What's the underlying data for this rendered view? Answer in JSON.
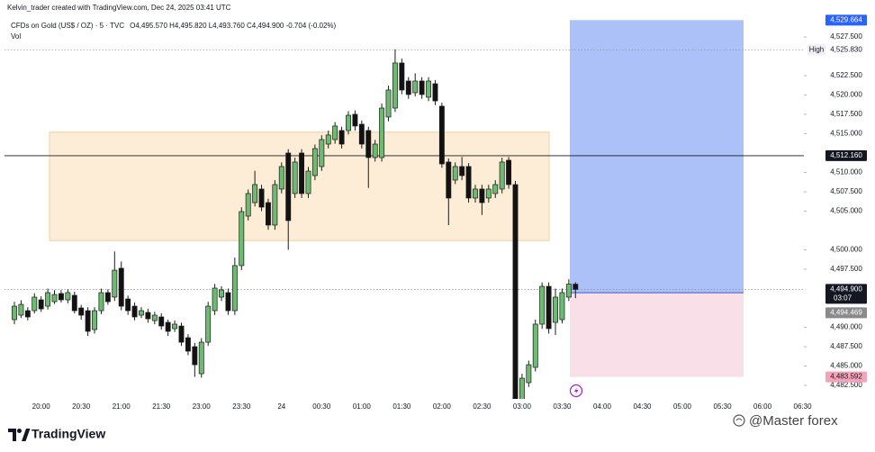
{
  "chart_data": {
    "type": "candlestick",
    "header": "Kelvin_trader created with TradingView.com, Dec 24, 2025 03:41 UTC",
    "symbol": "CFDs on Gold (US$ / OZ) · 5 · TVC",
    "ohlc_text": "O4,495.570 H4,495.820 L4,493.760 C4,494.900 -0.704 (-0.02%)",
    "volume_label": "Vol",
    "brand": "TradingView",
    "watermark": "@Master forex",
    "up_color": "#6dbb71",
    "down_color": "#121212",
    "grid": false,
    "categories": [
      null,
      null,
      null,
      null,
      "20:00",
      null,
      null,
      null,
      null,
      null,
      "20:30",
      null,
      null,
      null,
      null,
      null,
      "21:00",
      null,
      null,
      null,
      null,
      null,
      "21:30",
      null,
      null,
      null,
      null,
      null,
      "23:00",
      null,
      null,
      null,
      null,
      null,
      "23:30",
      null,
      null,
      null,
      null,
      null,
      "24",
      null,
      null,
      null,
      null,
      null,
      "00:30",
      null,
      null,
      null,
      null,
      null,
      "01:00",
      null,
      null,
      null,
      null,
      null,
      "01:30",
      null,
      null,
      null,
      null,
      null,
      "02:00",
      null,
      null,
      null,
      null,
      null,
      "02:30",
      null,
      null,
      null,
      null,
      null,
      "03:00",
      null,
      null,
      null,
      null,
      null,
      "03:30",
      null,
      null,
      null,
      null,
      null,
      "04:00",
      null,
      null,
      null,
      null,
      null,
      "04:30",
      null,
      null,
      null,
      null,
      null,
      "05:00",
      null,
      null,
      null,
      null,
      null,
      "05:30",
      null,
      null,
      null,
      null,
      null,
      "06:00",
      null,
      null,
      null,
      null,
      null,
      "06:30"
    ],
    "open": [
      4490.99,
      4491.57,
      4492.15,
      4492.15,
      4493.55,
      4492.73,
      4493.31,
      4494.36,
      4493.55,
      4494.13,
      4492.5,
      4492.15,
      4489.71,
      4492.15,
      4494.48,
      4493.9,
      4497.62,
      4493.66,
      4492.73,
      4491.57,
      4491.92,
      4490.87,
      4491.34,
      4490.64,
      4489.83,
      4490.17,
      4488.66,
      4487.5,
      4484.01,
      4488.08,
      4492.15,
      4493.9,
      4494.48,
      4492.15,
      4497.97,
      4504.36,
      4506.1,
      4507.85,
      4506.1,
      4503.2,
      4507.85,
      4512.5,
      4507.27,
      4512.5,
      4507.27,
      4509.59,
      4510.76,
      4513.66,
      4514.24,
      4515.41,
      4515.41,
      4517.5,
      4516.22,
      4515.41,
      4511.92,
      4511.92,
      4517.15,
      4518.31,
      4524.13,
      4521.8,
      4520.29,
      4521.8,
      4519.71,
      4521.45,
      4518.55,
      4511.34,
      4509.01,
      4510.76,
      4510.76,
      4506.69,
      4507.85,
      4506.69,
      4507.27,
      4507.85,
      4511.57,
      4508.43,
      4479.8,
      4482.85,
      4484.83,
      4490.41,
      4495.29,
      4490.64,
      4490.99,
      4493.9,
      4495.57,
      null,
      null,
      null,
      null,
      null,
      null,
      null,
      null,
      null,
      null,
      null,
      null,
      null,
      null,
      null,
      null,
      null,
      null,
      null,
      null,
      null,
      null,
      null,
      null,
      null,
      null,
      null,
      null,
      null,
      null,
      null,
      null,
      null,
      null
    ],
    "high": [
      4493.3,
      4493.5,
      4492.6,
      4494.4,
      4494.0,
      4495.0,
      4494.8,
      4494.8,
      4494.9,
      4494.6,
      4492.9,
      4492.6,
      4492.6,
      4495.0,
      4494.9,
      4499.8,
      4498.5,
      4494.1,
      4493.2,
      4492.6,
      4492.4,
      4492.0,
      4491.8,
      4491.0,
      4490.9,
      4490.6,
      4489.1,
      4488.0,
      4488.6,
      4493.3,
      4495.6,
      4495.3,
      4495.0,
      4499.0,
      4505.5,
      4507.8,
      4510.2,
      4508.4,
      4506.6,
      4509.0,
      4511.3,
      4513.0,
      4511.9,
      4513.0,
      4510.7,
      4513.6,
      4514.8,
      4515.4,
      4516.5,
      4515.9,
      4517.9,
      4518.0,
      4516.7,
      4515.9,
      4514.2,
      4518.9,
      4521.2,
      4525.9,
      4524.7,
      4522.3,
      4522.8,
      4522.3,
      4522.3,
      4521.9,
      4519.0,
      4511.8,
      4511.3,
      4512.0,
      4511.2,
      4508.4,
      4508.4,
      4508.4,
      4509.0,
      4511.9,
      4512.0,
      4508.9,
      4484.0,
      4485.7,
      4491.0,
      4495.8,
      4495.8,
      4495.0,
      4495.0,
      4496.2,
      4495.82,
      null,
      null,
      null,
      null,
      null,
      null,
      null,
      null,
      null,
      null,
      null,
      null,
      null,
      null,
      null,
      null,
      null,
      null,
      null,
      null,
      null,
      null,
      null,
      null,
      null,
      null,
      null,
      null,
      null,
      null,
      null,
      null,
      null,
      null
    ],
    "low": [
      4490.4,
      4491.2,
      4490.9,
      4491.8,
      4492.0,
      4492.3,
      4493.0,
      4493.2,
      4493.1,
      4491.8,
      4491.0,
      4488.9,
      4489.2,
      4491.7,
      4492.9,
      4493.4,
      4492.2,
      4491.6,
      4490.9,
      4491.2,
      4490.6,
      4490.4,
      4489.7,
      4488.9,
      4489.4,
      4487.6,
      4486.4,
      4483.6,
      4483.5,
      4487.6,
      4491.6,
      4493.4,
      4491.6,
      4491.6,
      4497.4,
      4503.8,
      4505.6,
      4505.0,
      4502.6,
      4502.6,
      4507.3,
      4500.0,
      4506.7,
      4506.7,
      4506.7,
      4509.0,
      4510.2,
      4513.1,
      4513.7,
      4513.1,
      4514.9,
      4515.4,
      4513.1,
      4508.0,
      4511.4,
      4511.4,
      4516.6,
      4517.8,
      4520.1,
      4519.5,
      4519.8,
      4519.5,
      4519.2,
      4518.7,
      4510.6,
      4503.2,
      4508.5,
      4509.0,
      4506.1,
      4506.1,
      4504.5,
      4506.1,
      4506.7,
      4507.3,
      4507.9,
      4479.0,
      4479.5,
      4482.3,
      4484.3,
      4489.8,
      4489.2,
      4489.0,
      4490.5,
      4493.4,
      4493.76,
      null,
      null,
      null,
      null,
      null,
      null,
      null,
      null,
      null,
      null,
      null,
      null,
      null,
      null,
      null,
      null,
      null,
      null,
      null,
      null,
      null,
      null,
      null,
      null,
      null,
      null,
      null,
      null,
      null,
      null,
      null,
      null,
      null,
      null
    ],
    "close": [
      4492.73,
      4492.96,
      4491.34,
      4493.9,
      4492.38,
      4494.48,
      4494.24,
      4493.55,
      4494.48,
      4492.15,
      4491.57,
      4489.48,
      4492.15,
      4494.48,
      4493.31,
      4497.38,
      4492.73,
      4492.15,
      4491.34,
      4492.15,
      4491.1,
      4491.57,
      4490.17,
      4489.48,
      4490.41,
      4488.08,
      4486.92,
      4485.17,
      4488.08,
      4492.73,
      4495.06,
      4494.83,
      4492.15,
      4497.97,
      4504.94,
      4507.27,
      4508.43,
      4505.52,
      4503.2,
      4508.43,
      4510.76,
      4503.78,
      4511.34,
      4507.27,
      4510.17,
      4513.08,
      4514.24,
      4514.83,
      4515.99,
      4513.66,
      4517.38,
      4515.99,
      4513.66,
      4511.92,
      4513.66,
      4518.31,
      4520.64,
      4524.13,
      4520.64,
      4520.06,
      4521.8,
      4520.06,
      4521.8,
      4519.24,
      4511.1,
      4506.69,
      4510.76,
      4509.59,
      4506.69,
      4507.85,
      4506.1,
      4507.85,
      4508.43,
      4511.34,
      4508.43,
      4479.5,
      4483.43,
      4485.17,
      4490.41,
      4495.29,
      4489.83,
      4493.9,
      4494.48,
      4495.57,
      4494.9,
      null,
      null,
      null,
      null,
      null,
      null,
      null,
      null,
      null,
      null,
      null,
      null,
      null,
      null,
      null,
      null,
      null,
      null,
      null,
      null,
      null,
      null,
      null,
      null,
      null,
      null,
      null,
      null,
      null,
      null,
      null,
      null,
      null,
      null
    ],
    "ylim": [
      4480.76,
      4530.17
    ],
    "yticks": [
      {
        "value": 4527.5,
        "label": "4,527.500"
      },
      {
        "value": 4522.5,
        "label": "4,522.500"
      },
      {
        "value": 4520,
        "label": "4,520.000"
      },
      {
        "value": 4517.5,
        "label": "4,517.500"
      },
      {
        "value": 4515,
        "label": "4,515.000"
      },
      {
        "value": 4510,
        "label": "4,510.000"
      },
      {
        "value": 4507.5,
        "label": "4,507.500"
      },
      {
        "value": 4505,
        "label": "4,505.000"
      },
      {
        "value": 4500,
        "label": "4,500.000"
      },
      {
        "value": 4497.5,
        "label": "4,497.500"
      },
      {
        "value": 4490,
        "label": "4,490.000"
      },
      {
        "value": 4487.5,
        "label": "4,487.500"
      },
      {
        "value": 4485,
        "label": "4,485.000"
      },
      {
        "value": 4482.5,
        "label": "4,482.500"
      }
    ],
    "zone": {
      "ylim": [
        4501.2,
        4515.2
      ],
      "color": "#fdecd6",
      "border": "#f3cfa0"
    },
    "price_lines": [
      {
        "value": 4525.83,
        "label": "4,525.830",
        "style": "dotted",
        "tag": "High",
        "bg": "#ffffff",
        "fg": "#131722"
      },
      {
        "value": 4512.16,
        "label": "4,512.160",
        "style": "solid",
        "bg": "#131722",
        "fg": "#ffffff"
      },
      {
        "value": 4494.9,
        "label": "4,494.900",
        "style": "dotted",
        "countdown": "03:07",
        "bg": "#131722",
        "fg": "#ffffff"
      }
    ],
    "position": {
      "target": {
        "value": 4529.664,
        "label": "4,529.664",
        "bg": "#2962ff",
        "fg": "#ffffff"
      },
      "entry": {
        "value": 4494.469,
        "label": "4,494.469",
        "bg": "#8a8a8a",
        "fg": "#ffffff"
      },
      "stop": {
        "value": 4483.592,
        "label": "4,483.592",
        "bg": "#f4a3b8",
        "fg": "#131722"
      },
      "profit_color": "#abc1f8",
      "loss_color": "#f8dfe8",
      "entry_color": "#6a86d6"
    }
  }
}
